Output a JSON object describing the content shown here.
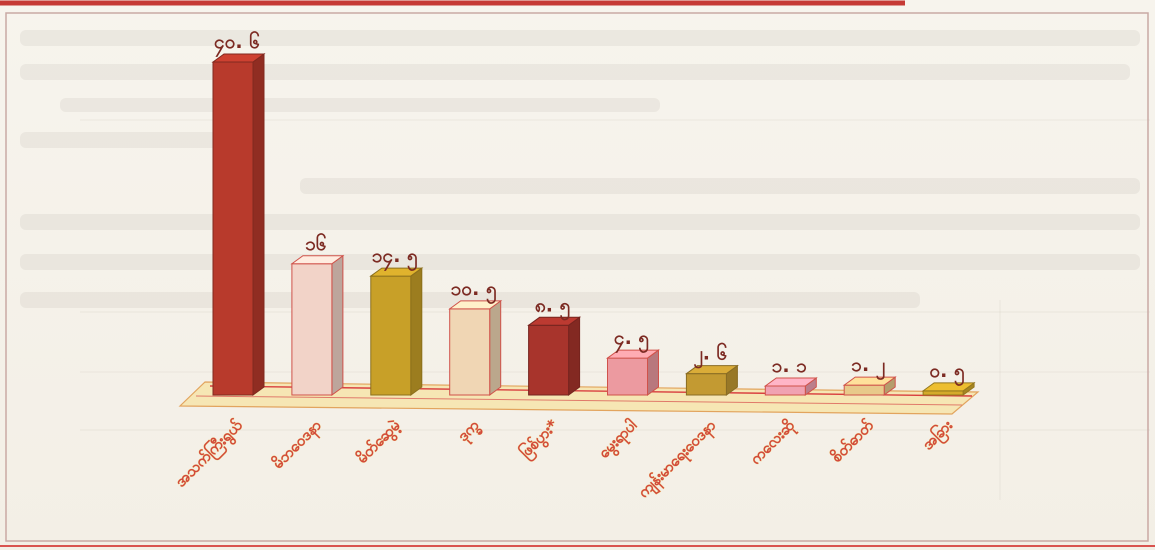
{
  "chart_data": {
    "type": "bar",
    "style": "3d",
    "categories": [
      "အသက်ကြီးရွယ်",
      "မိဘဝေဒနာ",
      "မိတ်ဆွေမဲ့",
      "ဒုက္ခ",
      "ဖြစ်ပွား*",
      "မွေးရာပါ",
      "ကျန်းမာရေးဝေဒနာ",
      "ကလေးဆို",
      "စိတ်ဓာတ်",
      "အခြား"
    ],
    "values": [
      40.6,
      16,
      14.5,
      10.5,
      8.5,
      4.5,
      2.6,
      1.1,
      1.2,
      0.5
    ],
    "value_labels": [
      "၄၀. ၆",
      "၁၆",
      "၁၄. ၅",
      "၁၀. ၅",
      "၈. ၅",
      "၄. ၅",
      "၂. ၆",
      "၁. ၁",
      "၁. ၂",
      "၀. ၅"
    ],
    "colors": [
      "#b83a2c",
      "#f2d3c8",
      "#c8a028",
      "#f0d6b4",
      "#a8342c",
      "#ec9aa0",
      "#c39a32",
      "#f0a2b2",
      "#e8c98a",
      "#d4aa2a"
    ],
    "title": "",
    "xlabel": "",
    "ylabel": "",
    "ylim": [
      0,
      45
    ],
    "grid": false,
    "legend": "none"
  }
}
